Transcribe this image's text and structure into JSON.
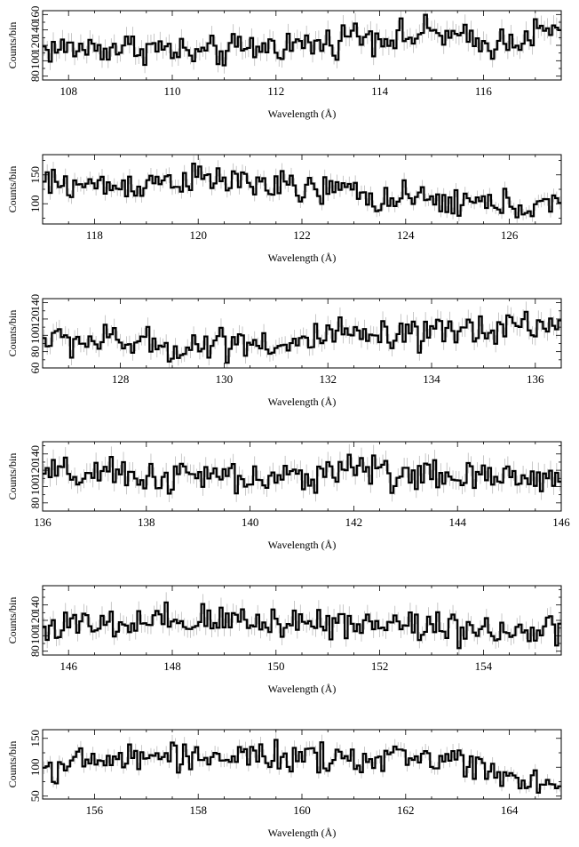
{
  "chart_data": [
    {
      "type": "line",
      "xlabel": "Wavelength (Å)",
      "ylabel": "Counts/bin",
      "xlim": [
        107.5,
        117.5
      ],
      "ylim": [
        75,
        165
      ],
      "xticks": [
        108,
        110,
        112,
        114,
        116
      ],
      "yticks": [
        80,
        100,
        120,
        140,
        160
      ],
      "xtick_labels": [
        "108",
        "110",
        "112",
        "114",
        "116"
      ],
      "ytick_labels": [
        "80",
        "100",
        "120",
        "140",
        "160"
      ],
      "profile": [
        [
          107.5,
          115
        ],
        [
          109.5,
          118
        ],
        [
          110.5,
          108
        ],
        [
          112,
          120
        ],
        [
          113,
          122
        ],
        [
          113.4,
          135
        ],
        [
          114.5,
          130
        ],
        [
          115,
          138
        ],
        [
          116,
          120
        ],
        [
          117,
          135
        ],
        [
          117.5,
          138
        ]
      ],
      "noise": 10
    },
    {
      "type": "line",
      "xlabel": "Wavelength (Å)",
      "ylabel": "Counts/bin",
      "xlim": [
        117,
        127
      ],
      "ylim": [
        65,
        185
      ],
      "xticks": [
        118,
        120,
        122,
        124,
        126
      ],
      "yticks": [
        100,
        150
      ],
      "xtick_labels": [
        "118",
        "120",
        "122",
        "124",
        "126"
      ],
      "ytick_labels": [
        "100",
        "150"
      ],
      "profile": [
        [
          117,
          135
        ],
        [
          118.5,
          130
        ],
        [
          119.5,
          143
        ],
        [
          121,
          138
        ],
        [
          122,
          122
        ],
        [
          122.8,
          125
        ],
        [
          123.5,
          108
        ],
        [
          124.5,
          105
        ],
        [
          126,
          98
        ],
        [
          127,
          95
        ]
      ],
      "noise": 13
    },
    {
      "type": "line",
      "xlabel": "Wavelength (Å)",
      "ylabel": "Counts/bin",
      "xlim": [
        126.5,
        136.5
      ],
      "ylim": [
        60,
        145
      ],
      "xticks": [
        128,
        130,
        132,
        134,
        136
      ],
      "yticks": [
        60,
        80,
        100,
        120,
        140
      ],
      "xtick_labels": [
        "128",
        "130",
        "132",
        "134",
        "136"
      ],
      "ytick_labels": [
        "60",
        "80",
        "100",
        "120",
        "140"
      ],
      "profile": [
        [
          126.5,
          95
        ],
        [
          128,
          92
        ],
        [
          129,
          85
        ],
        [
          130.5,
          95
        ],
        [
          131.2,
          85
        ],
        [
          132,
          100
        ],
        [
          133.5,
          95
        ],
        [
          134.5,
          105
        ],
        [
          135.8,
          115
        ],
        [
          136.5,
          110
        ]
      ],
      "noise": 10
    },
    {
      "type": "line",
      "xlabel": "Wavelength (Å)",
      "ylabel": "Counts/bin",
      "xlim": [
        136,
        146
      ],
      "ylim": [
        70,
        155
      ],
      "xticks": [
        136,
        138,
        140,
        142,
        144,
        146
      ],
      "yticks": [
        80,
        100,
        120,
        140
      ],
      "xtick_labels": [
        "136",
        "138",
        "140",
        "142",
        "144",
        "146"
      ],
      "ytick_labels": [
        "80",
        "100",
        "120",
        "140"
      ],
      "profile": [
        [
          136,
          115
        ],
        [
          138,
          112
        ],
        [
          139.5,
          112
        ],
        [
          140.5,
          105
        ],
        [
          141.8,
          125
        ],
        [
          143,
          115
        ],
        [
          144.5,
          108
        ],
        [
          146,
          115
        ]
      ],
      "noise": 10
    },
    {
      "type": "line",
      "xlabel": "Wavelength (Å)",
      "ylabel": "Counts/bin",
      "xlim": [
        145.5,
        155.5
      ],
      "ylim": [
        75,
        165
      ],
      "xticks": [
        146,
        148,
        150,
        152,
        154
      ],
      "yticks": [
        80,
        100,
        120,
        140
      ],
      "xtick_labels": [
        "146",
        "148",
        "150",
        "152",
        "154"
      ],
      "ytick_labels": [
        "80",
        "100",
        "120",
        "140"
      ],
      "profile": [
        [
          145.5,
          112
        ],
        [
          147,
          112
        ],
        [
          149,
          120
        ],
        [
          151,
          118
        ],
        [
          152.5,
          115
        ],
        [
          154,
          110
        ],
        [
          155.5,
          100
        ]
      ],
      "noise": 11
    },
    {
      "type": "line",
      "xlabel": "Wavelength (Å)",
      "ylabel": "Counts/bin",
      "xlim": [
        155,
        165
      ],
      "ylim": [
        45,
        165
      ],
      "xticks": [
        156,
        158,
        160,
        162,
        164
      ],
      "yticks": [
        50,
        100,
        150
      ],
      "xtick_labels": [
        "156",
        "158",
        "160",
        "162",
        "164"
      ],
      "ytick_labels": [
        "50",
        "100",
        "150"
      ],
      "profile": [
        [
          155,
          100
        ],
        [
          156.5,
          115
        ],
        [
          158,
          120
        ],
        [
          160,
          115
        ],
        [
          161,
          110
        ],
        [
          162,
          118
        ],
        [
          163,
          115
        ],
        [
          164,
          85
        ],
        [
          165,
          70
        ]
      ],
      "noise": 12
    }
  ]
}
